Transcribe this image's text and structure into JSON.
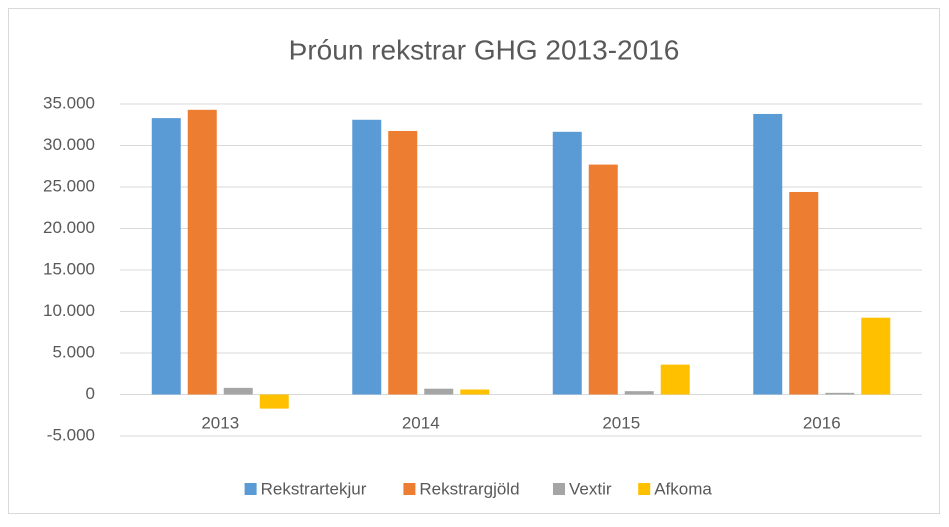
{
  "chart_data": {
    "type": "bar",
    "title": "Þróun rekstrar GHG 2013-2016",
    "categories": [
      "2013",
      "2014",
      "2015",
      "2016"
    ],
    "series": [
      {
        "name": "Rekstrartekjur",
        "color": "#5b9bd5",
        "values": [
          33300,
          33100,
          31650,
          33800
        ]
      },
      {
        "name": "Rekstrargjöld",
        "color": "#ed7d31",
        "values": [
          34300,
          31750,
          27700,
          24400
        ]
      },
      {
        "name": "Vextir",
        "color": "#a5a5a5",
        "values": [
          800,
          700,
          400,
          200
        ]
      },
      {
        "name": "Afkoma",
        "color": "#ffc000",
        "values": [
          -1700,
          600,
          3600,
          9250
        ]
      }
    ],
    "ylim": [
      -5000,
      35000
    ],
    "yticks": [
      {
        "value": -5000,
        "label": "-5.000"
      },
      0,
      {
        "value": 5000,
        "label": "5.000"
      },
      {
        "value": 10000,
        "label": "10.000"
      },
      {
        "value": 15000,
        "label": "15.000"
      },
      {
        "value": 20000,
        "label": "20.000"
      },
      {
        "value": 25000,
        "label": "25.000"
      },
      {
        "value": 30000,
        "label": "30.000"
      },
      {
        "value": 35000,
        "label": "35.000"
      }
    ],
    "grid": true,
    "legend": "bottom"
  }
}
